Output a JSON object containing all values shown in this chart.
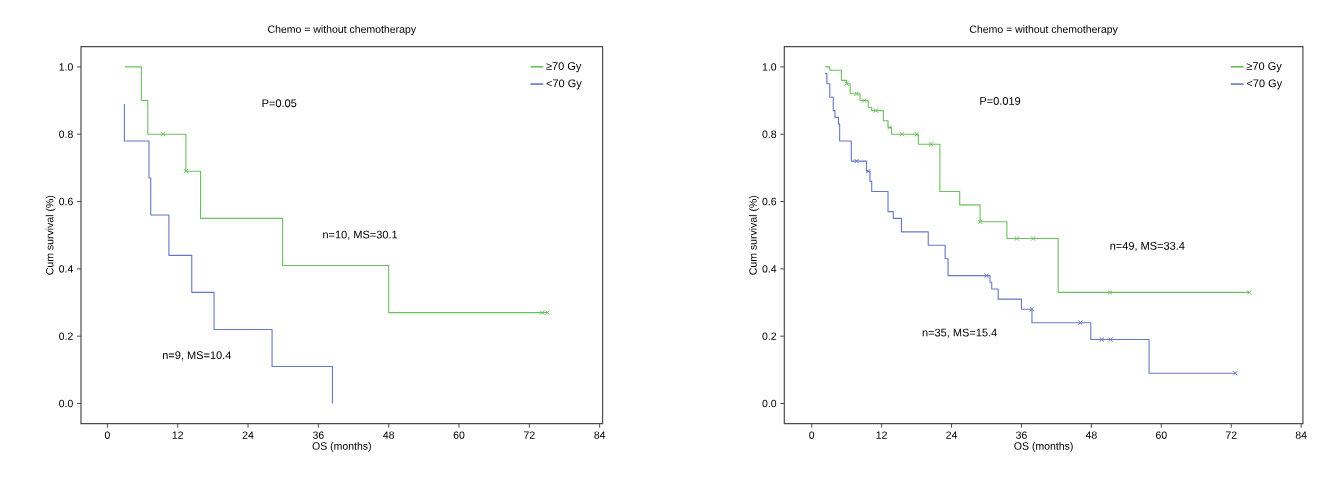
{
  "chart_data": [
    {
      "type": "step",
      "title": "Chemo = without chemotherapy",
      "xlabel": "OS (months)",
      "ylabel": "Cum survival (%)",
      "xlim": [
        -4.5,
        84.5
      ],
      "ylim": [
        -0.06,
        1.06
      ],
      "xticks": [
        0,
        12,
        24,
        36,
        48,
        60,
        72,
        84
      ],
      "yticks": [
        {
          "value": 0,
          "label": "0.0"
        },
        {
          "value": 0.2,
          "label": "0.2"
        },
        {
          "value": 0.4,
          "label": "0.4"
        },
        {
          "value": 0.6,
          "label": "0.6"
        },
        {
          "value": 0.8,
          "label": "0.8"
        },
        {
          "value": 1,
          "label": "1.0"
        }
      ],
      "legend": "top right",
      "grid": false,
      "annotations": [
        "P=0.05",
        "n=10, MS=30.1",
        "n=9, MS=10.4"
      ],
      "series": [
        {
          "name": "≥70 Gy",
          "color": "#6cbf5f",
          "x": [
            3.0,
            5.8,
            6.9,
            13.4,
            15.9,
            29.9,
            48.0,
            75.1
          ],
          "values": [
            1.0,
            0.9,
            0.8,
            0.69,
            0.55,
            0.41,
            0.27,
            0.27
          ]
        },
        {
          "name": "<70 Gy",
          "color": "#6478c4",
          "x": [
            2.9,
            2.9,
            7.1,
            7.4,
            10.5,
            14.4,
            18.2,
            28.1,
            38.4
          ],
          "values": [
            0.89,
            0.78,
            0.67,
            0.56,
            0.44,
            0.33,
            0.22,
            0.11,
            0.0
          ]
        },
        {
          "type": "scatter",
          "marker": "cross",
          "color": "#6cbf5f",
          "x": [
            9.5,
            13.4,
            74.2,
            75.1
          ],
          "values": [
            0.8,
            0.69,
            0.27,
            0.27
          ]
        }
      ]
    },
    {
      "type": "step",
      "title": "Chemo = without chemotherapy",
      "xlabel": "OS (months)",
      "ylabel": "Cum survival (%)",
      "xlim": [
        -4.7,
        84.3
      ],
      "ylim": [
        -0.06,
        1.06
      ],
      "xticks": [
        0,
        12,
        24,
        36,
        48,
        60,
        72,
        84
      ],
      "yticks": [
        {
          "value": 0,
          "label": "0.0"
        },
        {
          "value": 0.2,
          "label": "0.2"
        },
        {
          "value": 0.4,
          "label": "0.4"
        },
        {
          "value": 0.6,
          "label": "0.6"
        },
        {
          "value": 0.8,
          "label": "0.8"
        },
        {
          "value": 1,
          "label": "1.0"
        }
      ],
      "legend": "top right",
      "grid": false,
      "annotations": [
        "P=0.019",
        "n=49, MS=33.4",
        "n=35, MS=15.4"
      ],
      "series": [
        {
          "name": "≥70 Gy",
          "color": "#6cbf5f",
          "x": [
            2.3,
            3.1,
            5.1,
            6.0,
            6.6,
            8.3,
            9.7,
            10.3,
            12.3,
            13.1,
            13.7,
            18.3,
            22.0,
            25.4,
            28.9,
            33.5,
            42.3,
            75.1
          ],
          "values": [
            1.0,
            0.99,
            0.96,
            0.95,
            0.92,
            0.9,
            0.88,
            0.87,
            0.84,
            0.82,
            0.8,
            0.77,
            0.63,
            0.59,
            0.54,
            0.49,
            0.33,
            0.33
          ]
        },
        {
          "name": "<70 Gy",
          "color": "#6478c4",
          "x": [
            2.3,
            2.6,
            3.1,
            3.7,
            4.0,
            4.6,
            4.8,
            6.8,
            9.4,
            10.0,
            10.3,
            13.1,
            14.0,
            15.4,
            20.0,
            22.9,
            23.4,
            30.6,
            30.9,
            32.0,
            36.0,
            37.8,
            47.9,
            57.9,
            72.7
          ],
          "values": [
            0.98,
            0.95,
            0.91,
            0.87,
            0.85,
            0.83,
            0.78,
            0.72,
            0.69,
            0.66,
            0.63,
            0.57,
            0.55,
            0.51,
            0.47,
            0.43,
            0.38,
            0.36,
            0.34,
            0.31,
            0.28,
            0.24,
            0.19,
            0.09,
            0.09
          ]
        },
        {
          "type": "scatter",
          "marker": "cross",
          "color": "#6cbf5f",
          "x": [
            6.0,
            7.7,
            9.0,
            11.0,
            13.4,
            15.5,
            18.0,
            20.5,
            28.9,
            35.2,
            38.0,
            51.2,
            75.1
          ],
          "values": [
            0.95,
            0.92,
            0.9,
            0.87,
            0.82,
            0.8,
            0.8,
            0.77,
            0.54,
            0.49,
            0.49,
            0.33,
            0.33
          ]
        },
        {
          "type": "scatter",
          "marker": "cross",
          "color": "#6478c4",
          "x": [
            7.7,
            9.7,
            30.0,
            37.8,
            46.1,
            49.8,
            51.3,
            72.7
          ],
          "values": [
            0.72,
            0.69,
            0.38,
            0.28,
            0.24,
            0.19,
            0.19,
            0.09
          ]
        }
      ]
    }
  ]
}
